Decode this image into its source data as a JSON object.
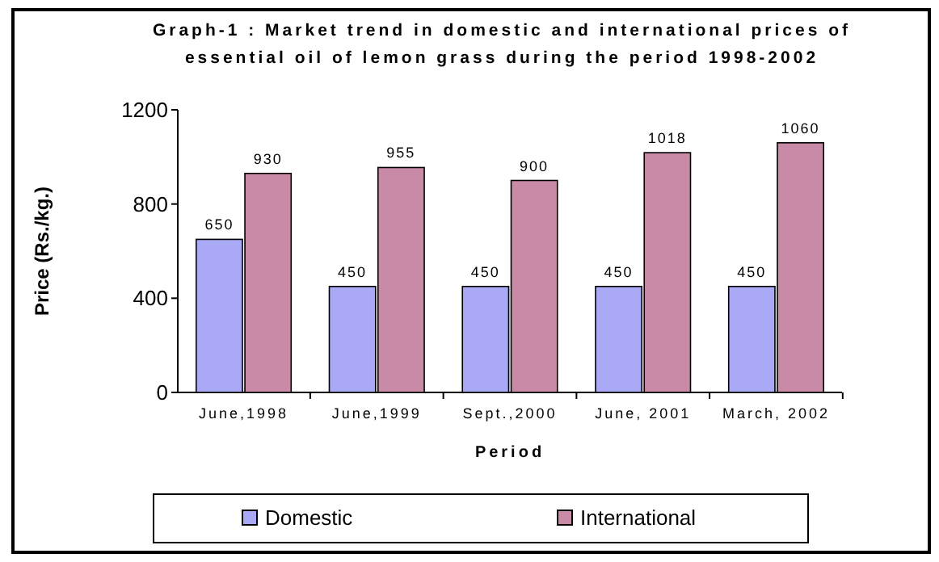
{
  "chart_data": {
    "type": "bar",
    "title": "Graph-1 : Market trend in domestic and international prices of essential oil of lemon grass during the period 1998-2002",
    "xlabel": "Period",
    "ylabel": "Price (Rs./kg.)",
    "categories": [
      "June,1998",
      "June,1999",
      "Sept.,2000",
      "June, 2001",
      "March, 2002"
    ],
    "series": [
      {
        "name": "Domestic",
        "color": "#a9a9f5",
        "values": [
          650,
          450,
          450,
          450,
          450
        ]
      },
      {
        "name": "International",
        "color": "#c88aa6",
        "values": [
          930,
          955,
          900,
          1018,
          1060
        ]
      }
    ],
    "ylim": [
      0,
      1200
    ],
    "yticks": [
      0,
      400,
      800,
      1200
    ],
    "data_labels": true,
    "legend": "bottom",
    "grid": false
  }
}
